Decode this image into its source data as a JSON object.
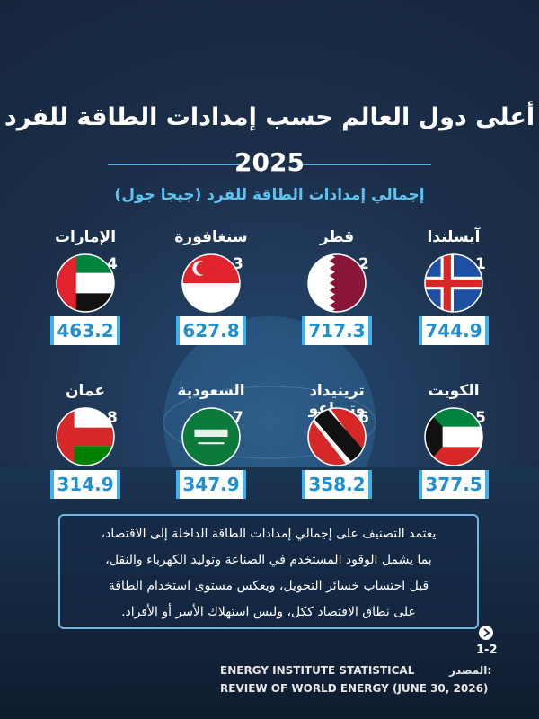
{
  "header": {
    "title": "أعلى دول العالم حسب إمدادات الطاقة للفرد",
    "year": "2025",
    "subtitle": "إجمالي إمدادات الطاقة للفرد (جيجا جول)"
  },
  "items": [
    {
      "rank": 1,
      "country": "آيسلندا",
      "value": 744.9
    },
    {
      "rank": 2,
      "country": "قطر",
      "value": 717.3
    },
    {
      "rank": 3,
      "country": "سنغافورة",
      "value": 627.8
    },
    {
      "rank": 4,
      "country": "الإمارات",
      "value": 463.2
    },
    {
      "rank": 5,
      "country": "الكويت",
      "value": 377.5
    },
    {
      "rank": 6,
      "country": "ترينيداد وتوباغو",
      "value": 358.2
    },
    {
      "rank": 7,
      "country": "السعودية",
      "value": 347.9
    },
    {
      "rank": 8,
      "country": "عمان",
      "value": 314.9
    }
  ],
  "note": {
    "lines": [
      "يعتمد التصنيف على إجمالي إمدادات الطاقة الداخلة إلى الاقتصاد،",
      "بما يشمل الوقود المستخدم في الصناعة وتوليد الكهرباء والنقل،",
      "قبل احتساب خسائر التحويل، ويعكس مستوى استخدام الطاقة",
      "على نطاق الاقتصاد ككل، وليس استهلاك الأسر أو الأفراد."
    ]
  },
  "footer": {
    "page": "1-2",
    "source_label": "المصدر:",
    "source_lines": [
      "ENERGY INSTITUTE STATISTICAL",
      "REVIEW OF WORLD ENERGY (JUNE 30, 2026)"
    ]
  }
}
